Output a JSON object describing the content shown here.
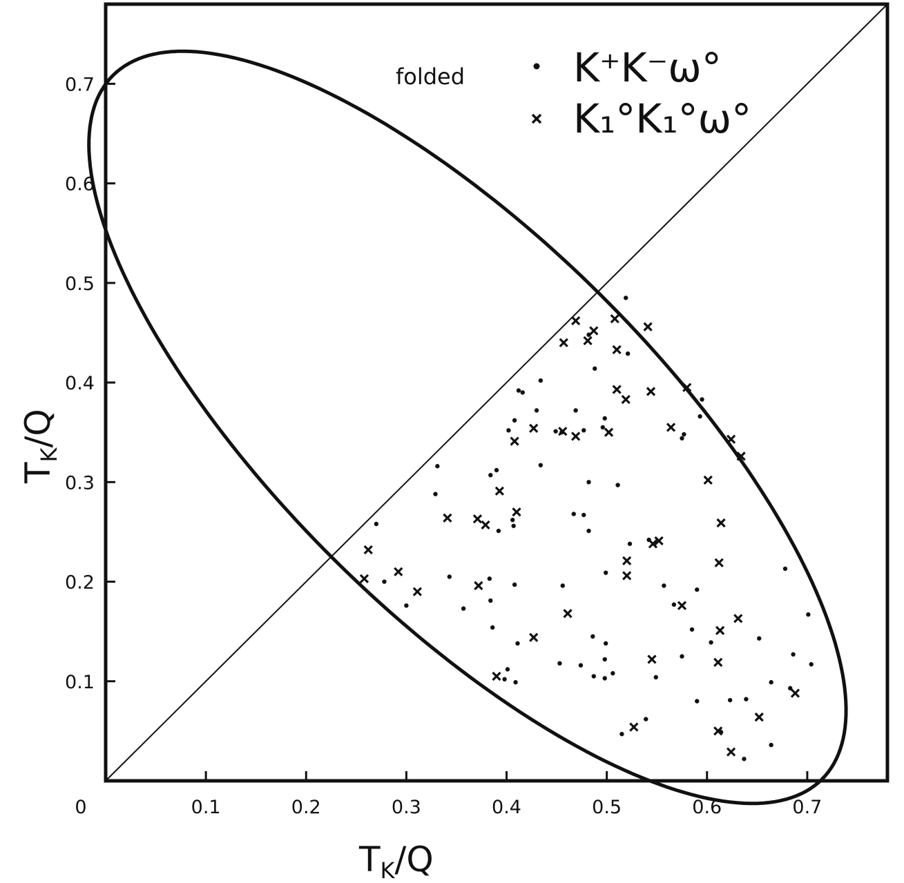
{
  "chart_data": {
    "type": "scatter",
    "title": "",
    "xlabel_main": "T",
    "xlabel_sub": "K",
    "xlabel_tail": "/Q",
    "ylabel_main": "T",
    "ylabel_sub": "K",
    "ylabel_tail": "/Q",
    "xlim": [
      0,
      0.78
    ],
    "ylim": [
      0,
      0.78
    ],
    "x_ticks": [
      "0",
      "0.1",
      "0.2",
      "0.3",
      "0.4",
      "0.5",
      "0.6",
      "0.7"
    ],
    "y_ticks": [
      "0.1",
      "0.2",
      "0.3",
      "0.4",
      "0.5",
      "0.6",
      "0.7"
    ],
    "grid": false,
    "annotation": "folded",
    "legend_position": "top-right",
    "diagonal": [
      [
        0,
        0
      ],
      [
        0.78,
        0.78
      ]
    ],
    "boundary": {
      "shape": "ellipse",
      "center": [
        0.361,
        0.355
      ],
      "semi_major": 0.5,
      "semi_minor": 0.188,
      "angle_deg": -45
    },
    "series": [
      {
        "name": "K⁺K⁻ω°",
        "marker": "dot",
        "points": [
          [
            0.519,
            0.485
          ],
          [
            0.482,
            0.448
          ],
          [
            0.521,
            0.429
          ],
          [
            0.488,
            0.414
          ],
          [
            0.434,
            0.402
          ],
          [
            0.412,
            0.392
          ],
          [
            0.416,
            0.39
          ],
          [
            0.43,
            0.372
          ],
          [
            0.469,
            0.372
          ],
          [
            0.498,
            0.364
          ],
          [
            0.595,
            0.383
          ],
          [
            0.593,
            0.366
          ],
          [
            0.408,
            0.362
          ],
          [
            0.402,
            0.352
          ],
          [
            0.455,
            0.35
          ],
          [
            0.449,
            0.351
          ],
          [
            0.477,
            0.352
          ],
          [
            0.496,
            0.355
          ],
          [
            0.575,
            0.344
          ],
          [
            0.577,
            0.348
          ],
          [
            0.434,
            0.317
          ],
          [
            0.384,
            0.307
          ],
          [
            0.39,
            0.312
          ],
          [
            0.331,
            0.316
          ],
          [
            0.329,
            0.288
          ],
          [
            0.482,
            0.3
          ],
          [
            0.511,
            0.297
          ],
          [
            0.27,
            0.258
          ],
          [
            0.392,
            0.251
          ],
          [
            0.406,
            0.262
          ],
          [
            0.407,
            0.256
          ],
          [
            0.467,
            0.268
          ],
          [
            0.477,
            0.267
          ],
          [
            0.482,
            0.251
          ],
          [
            0.523,
            0.238
          ],
          [
            0.542,
            0.242
          ],
          [
            0.278,
            0.2
          ],
          [
            0.343,
            0.205
          ],
          [
            0.383,
            0.203
          ],
          [
            0.384,
            0.181
          ],
          [
            0.408,
            0.197
          ],
          [
            0.456,
            0.196
          ],
          [
            0.499,
            0.209
          ],
          [
            0.557,
            0.196
          ],
          [
            0.59,
            0.192
          ],
          [
            0.678,
            0.213
          ],
          [
            0.3,
            0.176
          ],
          [
            0.357,
            0.173
          ],
          [
            0.386,
            0.154
          ],
          [
            0.567,
            0.177
          ],
          [
            0.585,
            0.152
          ],
          [
            0.486,
            0.145
          ],
          [
            0.411,
            0.138
          ],
          [
            0.499,
            0.138
          ],
          [
            0.604,
            0.139
          ],
          [
            0.652,
            0.143
          ],
          [
            0.453,
            0.118
          ],
          [
            0.474,
            0.116
          ],
          [
            0.498,
            0.122
          ],
          [
            0.506,
            0.108
          ],
          [
            0.575,
            0.125
          ],
          [
            0.401,
            0.112
          ],
          [
            0.398,
            0.102
          ],
          [
            0.409,
            0.099
          ],
          [
            0.487,
            0.105
          ],
          [
            0.498,
            0.103
          ],
          [
            0.549,
            0.104
          ],
          [
            0.701,
            0.167
          ],
          [
            0.686,
            0.127
          ],
          [
            0.704,
            0.117
          ],
          [
            0.683,
            0.093
          ],
          [
            0.664,
            0.099
          ],
          [
            0.59,
            0.08
          ],
          [
            0.623,
            0.081
          ],
          [
            0.639,
            0.082
          ],
          [
            0.515,
            0.047
          ],
          [
            0.539,
            0.062
          ],
          [
            0.614,
            0.049
          ],
          [
            0.664,
            0.036
          ],
          [
            0.637,
            0.022
          ]
        ]
      },
      {
        "name": "K₁°K₁°ω°",
        "marker": "cross",
        "points": [
          [
            0.469,
            0.462
          ],
          [
            0.508,
            0.464
          ],
          [
            0.541,
            0.456
          ],
          [
            0.481,
            0.442
          ],
          [
            0.457,
            0.44
          ],
          [
            0.487,
            0.452
          ],
          [
            0.51,
            0.433
          ],
          [
            0.51,
            0.393
          ],
          [
            0.519,
            0.383
          ],
          [
            0.544,
            0.391
          ],
          [
            0.58,
            0.395
          ],
          [
            0.427,
            0.354
          ],
          [
            0.456,
            0.351
          ],
          [
            0.469,
            0.346
          ],
          [
            0.502,
            0.35
          ],
          [
            0.564,
            0.355
          ],
          [
            0.624,
            0.343
          ],
          [
            0.634,
            0.326
          ],
          [
            0.408,
            0.341
          ],
          [
            0.393,
            0.291
          ],
          [
            0.601,
            0.302
          ],
          [
            0.341,
            0.264
          ],
          [
            0.371,
            0.263
          ],
          [
            0.379,
            0.257
          ],
          [
            0.41,
            0.27
          ],
          [
            0.614,
            0.259
          ],
          [
            0.546,
            0.238
          ],
          [
            0.552,
            0.241
          ],
          [
            0.262,
            0.232
          ],
          [
            0.258,
            0.203
          ],
          [
            0.292,
            0.21
          ],
          [
            0.311,
            0.19
          ],
          [
            0.372,
            0.196
          ],
          [
            0.52,
            0.221
          ],
          [
            0.52,
            0.206
          ],
          [
            0.612,
            0.219
          ],
          [
            0.575,
            0.176
          ],
          [
            0.461,
            0.168
          ],
          [
            0.631,
            0.163
          ],
          [
            0.613,
            0.151
          ],
          [
            0.427,
            0.144
          ],
          [
            0.545,
            0.122
          ],
          [
            0.611,
            0.119
          ],
          [
            0.39,
            0.105
          ],
          [
            0.688,
            0.088
          ],
          [
            0.652,
            0.064
          ],
          [
            0.527,
            0.054
          ],
          [
            0.611,
            0.05
          ],
          [
            0.624,
            0.029
          ]
        ]
      }
    ]
  }
}
